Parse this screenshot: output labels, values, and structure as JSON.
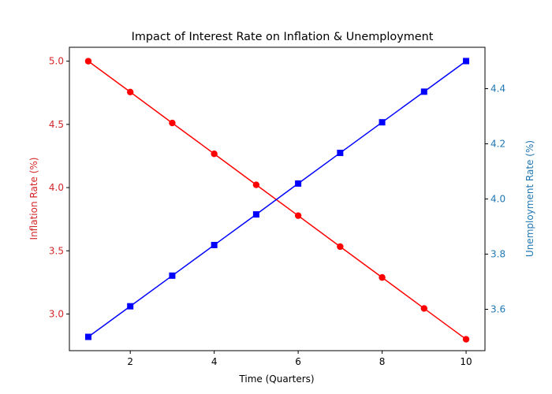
{
  "chart_data": {
    "type": "line",
    "title": "Impact of Interest Rate on Inflation & Unemployment",
    "xlabel": "Time (Quarters)",
    "ylabel_left": "Inflation Rate (%)",
    "ylabel_right": "Unemployment Rate (%)",
    "x": [
      1,
      2,
      3,
      4,
      5,
      6,
      7,
      8,
      9,
      10
    ],
    "xlim": [
      0.55,
      10.45
    ],
    "ylim_left": [
      2.71,
      5.11
    ],
    "ylim_right": [
      3.45,
      4.55
    ],
    "xticks": [
      "2",
      "4",
      "6",
      "8",
      "10"
    ],
    "xtick_values": [
      2,
      4,
      6,
      8,
      10
    ],
    "yticks_left": [
      "3.0",
      "3.5",
      "4.0",
      "4.5",
      "5.0"
    ],
    "ytick_values_left": [
      3.0,
      3.5,
      4.0,
      4.5,
      5.0
    ],
    "yticks_right": [
      "3.6",
      "3.8",
      "4.0",
      "4.2",
      "4.4"
    ],
    "ytick_values_right": [
      3.6,
      3.8,
      4.0,
      4.2,
      4.4
    ],
    "grid": false,
    "series": [
      {
        "axis": "left",
        "marker": "circle",
        "color": "#ff0000",
        "values": [
          5.0,
          4.756,
          4.511,
          4.267,
          4.022,
          3.778,
          3.533,
          3.289,
          3.044,
          2.8
        ]
      },
      {
        "axis": "right",
        "marker": "square",
        "color": "#0000ff",
        "values": [
          3.5,
          3.611,
          3.722,
          3.833,
          3.944,
          4.056,
          4.167,
          4.278,
          4.389,
          4.5
        ]
      }
    ],
    "left_axis_color": "#d62728",
    "right_axis_color": "#1f77b4"
  }
}
